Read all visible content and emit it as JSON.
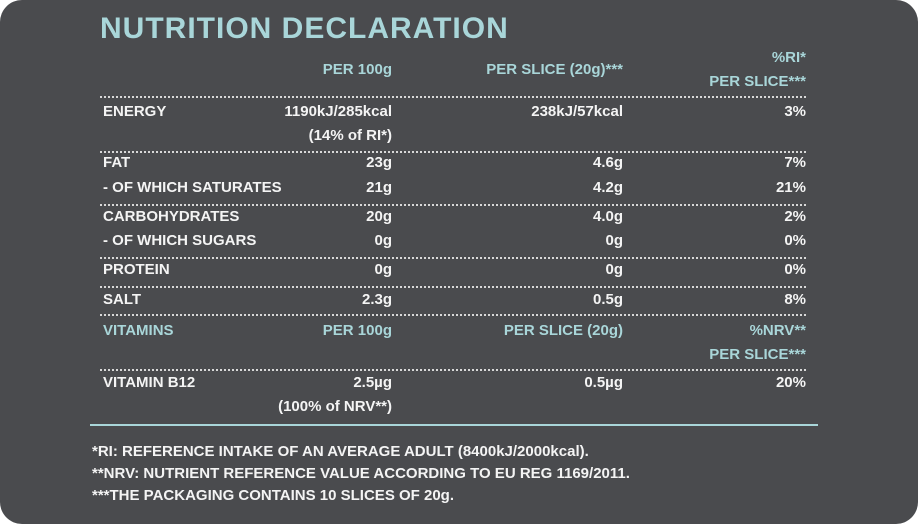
{
  "title": "NUTRITION DECLARATION",
  "nutrition": {
    "header": [
      "PER 100g",
      "PER SLICE (20g)***",
      [
        "%RI*",
        "PER SLICE***"
      ]
    ],
    "groups": [
      [
        [
          "ENERGY",
          [
            "1190kJ/285kcal",
            "(14% of RI*)"
          ],
          "238kJ/57kcal",
          "3%"
        ]
      ],
      [
        [
          "FAT",
          "23g",
          "4.6g",
          "7%"
        ],
        [
          "- OF WHICH SATURATES",
          "21g",
          "4.2g",
          "21%"
        ]
      ],
      [
        [
          "CARBOHYDRATES",
          "20g",
          "4.0g",
          "2%"
        ],
        [
          "- OF WHICH SUGARS",
          "0g",
          "0g",
          "0%"
        ]
      ],
      [
        [
          "PROTEIN",
          "0g",
          "0g",
          "0%"
        ]
      ],
      [
        [
          "SALT",
          "2.3g",
          "0.5g",
          "8%"
        ]
      ]
    ]
  },
  "vitamins": {
    "header": [
      "VITAMINS",
      "PER 100g",
      "PER SLICE (20g)",
      [
        "%NRV**",
        "PER SLICE***"
      ]
    ],
    "rows": [
      [
        "VITAMIN B12",
        [
          "2.5µg",
          "(100% of NRV**)"
        ],
        "0.5µg",
        "20%"
      ]
    ]
  },
  "footnotes": [
    "*RI: REFERENCE INTAKE OF AN AVERAGE ADULT (8400kJ/2000kcal).",
    "**NRV: NUTRIENT REFERENCE VALUE ACCORDING TO EU REG 1169/2011.",
    "***THE PACKAGING CONTAINS 10 SLICES OF 20g."
  ]
}
